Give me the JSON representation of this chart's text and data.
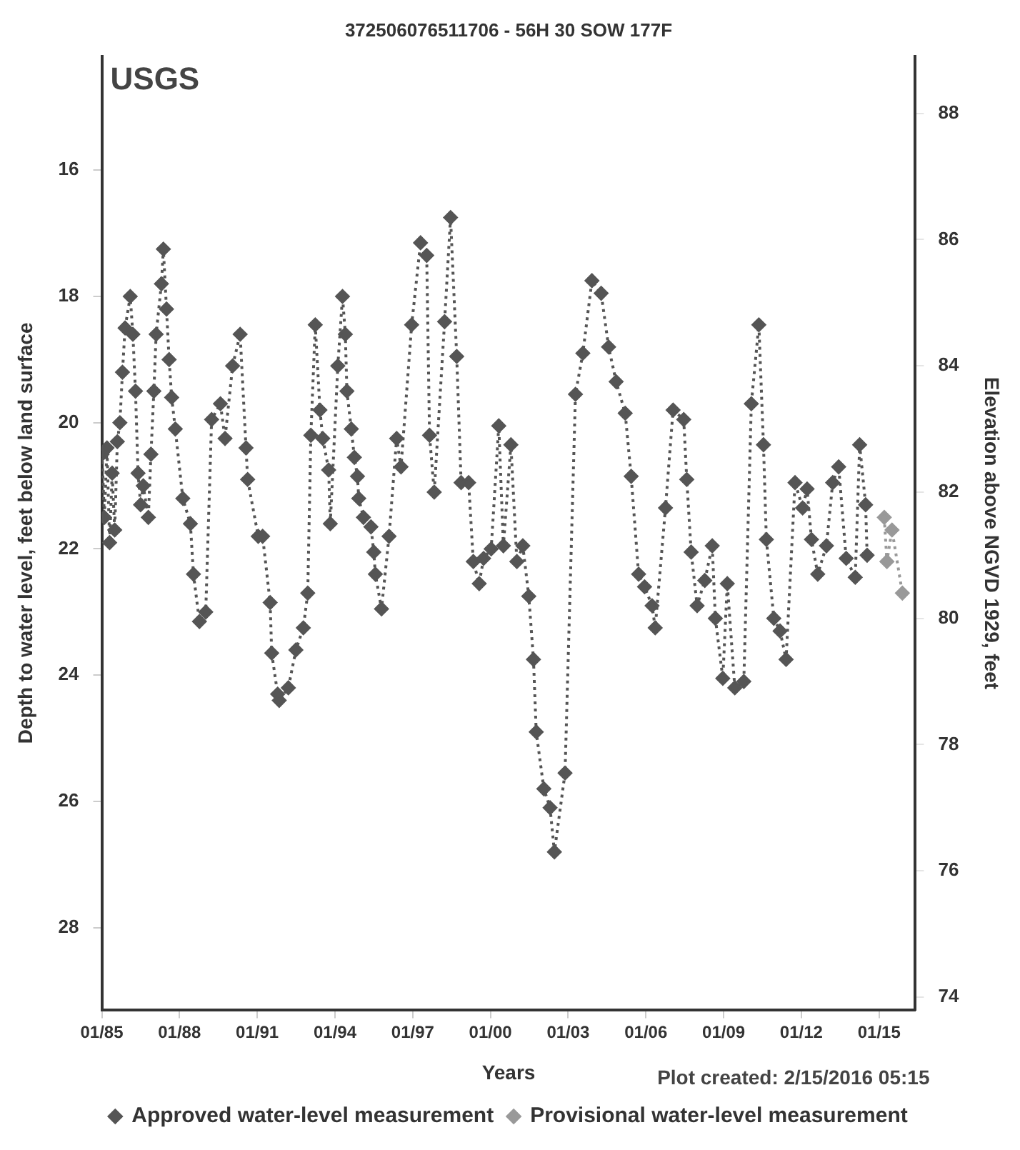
{
  "chart_data": {
    "type": "line",
    "title": "372506076511706 - 56H 30 SOW 177F",
    "xlabel": "Years",
    "ylabel": "Depth to water level, feet below land surface",
    "y2label": "Elevation above NGVD 1929, feet",
    "annotations": [
      "USGS",
      "Plot created: 2/15/2016 05:15"
    ],
    "xlim": [
      "1985-01-01",
      "2016-05-26"
    ],
    "xticks": [
      {
        "value": "1985-01",
        "label": "01/85"
      },
      {
        "value": "1988-01",
        "label": "01/88"
      },
      {
        "value": "1991-01",
        "label": "01/91"
      },
      {
        "value": "1994-01",
        "label": "01/94"
      },
      {
        "value": "1997-01",
        "label": "01/97"
      },
      {
        "value": "2000-01",
        "label": "01/00"
      },
      {
        "value": "2003-01",
        "label": "01/03"
      },
      {
        "value": "2006-01",
        "label": "01/06"
      },
      {
        "value": "2009-01",
        "label": "01/09"
      },
      {
        "value": "2012-01",
        "label": "01/12"
      },
      {
        "value": "2015-01",
        "label": "01/15"
      }
    ],
    "ylim": [
      29.3,
      14.2
    ],
    "yticks": [
      16,
      18,
      20,
      22,
      24,
      26,
      28
    ],
    "y2lim": [
      73.8,
      88.9
    ],
    "y2ticks": [
      74,
      76,
      78,
      80,
      82,
      84,
      86,
      88
    ],
    "grid": false,
    "legend": "bottom",
    "marker": "diamond",
    "line_style": "dotted",
    "series": [
      {
        "name": "Approved water-level measurement",
        "color": "#555555",
        "x": [
          "1985-01-05",
          "1985-02-06",
          "1985-03-15",
          "1985-04-21",
          "1985-05-27",
          "1985-07-02",
          "1985-08-08",
          "1985-09-13",
          "1985-10-19",
          "1985-11-25",
          "1986-02-06",
          "1986-03-15",
          "1986-04-21",
          "1986-05-27",
          "1986-07-02",
          "1986-08-08",
          "1986-10-19",
          "1986-11-25",
          "1987-01-05",
          "1987-02-06",
          "1987-04-21",
          "1987-05-19",
          "1987-07-02",
          "1987-08-08",
          "1987-09-13",
          "1987-11-03",
          "1988-02-17",
          "1988-06-03",
          "1988-07-16",
          "1988-10-08",
          "1989-01-05",
          "1989-03-29",
          "1989-07-31",
          "1989-10-04",
          "1990-01-19",
          "1990-05-05",
          "1990-07-27",
          "1990-08-19",
          "1991-01-15",
          "1991-03-18",
          "1991-07-02",
          "1991-07-24",
          "1991-10-16",
          "1991-11-07",
          "1992-03-15",
          "1992-06-29",
          "1992-10-12",
          "1992-12-13",
          "1993-01-26",
          "1993-03-29",
          "1993-06-03",
          "1993-07-13",
          "1993-10-04",
          "1993-10-27",
          "1994-02-10",
          "1994-04-17",
          "1994-05-27",
          "1994-06-18",
          "1994-08-19",
          "1994-10-01",
          "1994-11-14",
          "1994-12-02",
          "1995-02-06",
          "1995-05-23",
          "1995-07-02",
          "1995-07-24",
          "1995-10-19",
          "1996-02-02",
          "1996-05-19",
          "1996-07-20",
          "1996-12-17",
          "1997-04-21",
          "1997-07-17",
          "1997-08-26",
          "1997-10-31",
          "1998-03-26",
          "1998-06-18",
          "1998-09-13",
          "1998-11-14",
          "1999-02-28",
          "1999-05-05",
          "1999-07-27",
          "1999-09-27",
          "2000-01-12",
          "2000-04-28",
          "2000-07-02",
          "2000-10-16",
          "2001-01-08",
          "2001-04-02",
          "2001-06-25",
          "2001-08-30",
          "2001-10-08",
          "2002-01-23",
          "2002-04-21",
          "2002-06-21",
          "2002-11-18",
          "2003-04-14",
          "2003-07-27",
          "2003-12-02",
          "2004-04-10",
          "2004-07-24",
          "2004-11-07",
          "2005-03-15",
          "2005-06-07",
          "2005-09-20",
          "2005-12-13",
          "2006-03-29",
          "2006-05-12",
          "2006-10-04",
          "2007-01-19",
          "2007-06-18",
          "2007-07-31",
          "2007-10-01",
          "2007-12-24",
          "2008-04-10",
          "2008-07-24",
          "2008-09-06",
          "2008-12-20",
          "2009-02-21",
          "2009-06-07",
          "2009-10-12",
          "2010-01-26",
          "2010-05-12",
          "2010-07-16",
          "2010-08-26",
          "2010-12-09",
          "2011-03-07",
          "2011-05-31",
          "2011-10-04",
          "2012-01-19",
          "2012-03-22",
          "2012-05-23",
          "2012-08-19",
          "2012-12-20",
          "2013-03-18",
          "2013-06-10",
          "2013-09-24",
          "2014-01-30",
          "2014-04-02",
          "2014-06-25",
          "2014-07-16"
        ],
        "values": [
          20.5,
          21.5,
          20.4,
          21.9,
          20.8,
          21.7,
          20.3,
          20.0,
          19.2,
          18.5,
          18.0,
          18.6,
          19.5,
          20.8,
          21.3,
          21.0,
          21.5,
          20.5,
          19.5,
          18.6,
          17.8,
          17.25,
          18.2,
          19.0,
          19.6,
          20.1,
          21.2,
          21.6,
          22.4,
          23.15,
          23.0,
          19.95,
          19.7,
          20.25,
          19.1,
          18.6,
          20.4,
          20.9,
          21.8,
          21.8,
          22.85,
          23.65,
          24.3,
          24.4,
          24.2,
          23.6,
          23.25,
          22.7,
          20.2,
          18.45,
          19.8,
          20.25,
          20.75,
          21.6,
          19.1,
          18.0,
          18.6,
          19.5,
          20.1,
          20.55,
          20.85,
          21.2,
          21.5,
          21.65,
          22.05,
          22.4,
          22.95,
          21.8,
          20.25,
          20.7,
          18.45,
          17.15,
          17.35,
          20.2,
          21.1,
          18.4,
          16.75,
          18.95,
          20.95,
          20.95,
          22.2,
          22.55,
          22.15,
          22.0,
          20.05,
          21.95,
          20.35,
          22.2,
          21.95,
          22.75,
          23.75,
          24.9,
          25.8,
          26.1,
          26.8,
          25.55,
          19.55,
          18.9,
          17.75,
          17.95,
          18.8,
          19.35,
          19.85,
          20.85,
          22.4,
          22.6,
          22.9,
          23.25,
          21.35,
          19.8,
          19.95,
          20.9,
          22.05,
          22.9,
          22.5,
          21.95,
          23.1,
          24.05,
          22.55,
          24.2,
          24.1,
          19.7,
          18.45,
          20.35,
          21.85,
          23.1,
          23.3,
          23.75,
          20.95,
          21.35,
          21.05,
          21.85,
          22.4,
          21.95,
          20.95,
          20.7,
          22.15,
          22.45,
          20.35,
          21.3,
          22.1
        ]
      },
      {
        "name": "Provisional water-level measurement",
        "color": "#999999",
        "x": [
          "2015-03-15",
          "2015-04-21",
          "2015-07-02",
          "2015-11-25"
        ],
        "values": [
          21.5,
          22.2,
          21.7,
          22.7
        ]
      }
    ]
  }
}
